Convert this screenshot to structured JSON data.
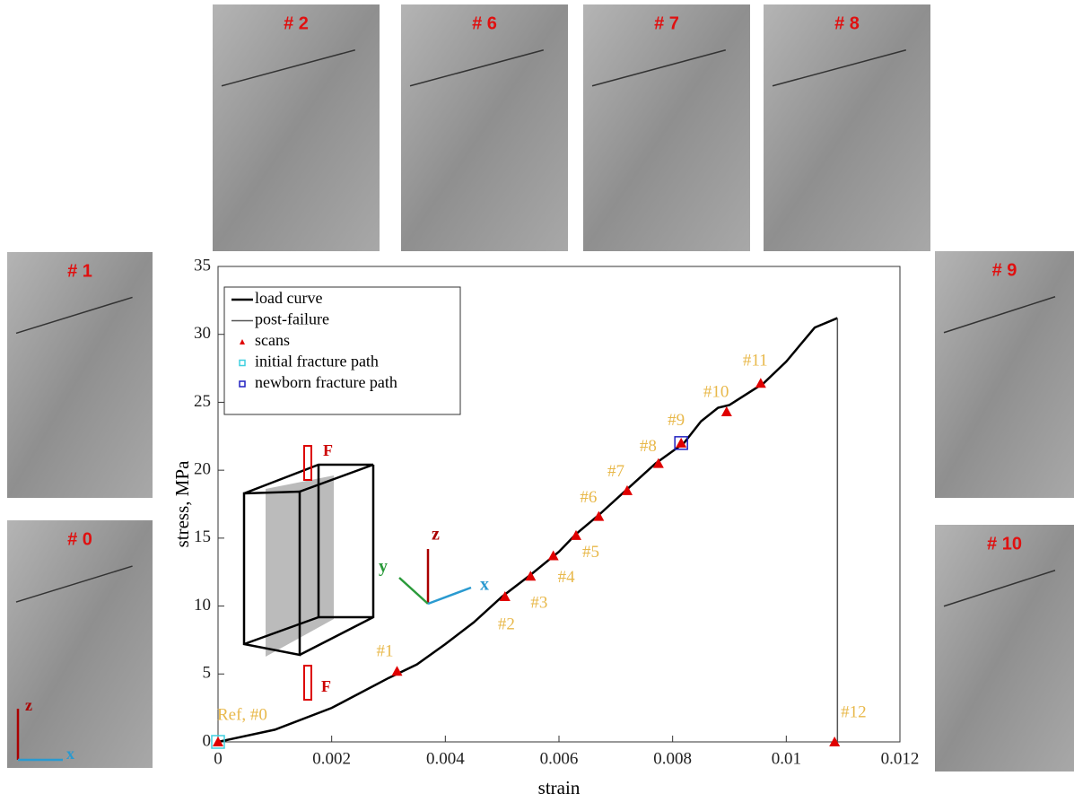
{
  "chart_data": {
    "type": "line",
    "xlabel": "strain",
    "ylabel": "stress, MPa",
    "xlim": [
      0,
      0.012
    ],
    "xticks": [
      0,
      0.002,
      0.004,
      0.006,
      0.008,
      0.01,
      0.012
    ],
    "ylim": [
      0,
      35
    ],
    "yticks": [
      0,
      5,
      10,
      15,
      20,
      25,
      30,
      35
    ],
    "legend": "upper left",
    "series": [
      {
        "name": "load curve",
        "color": "#000000",
        "style": "line",
        "x": [
          0,
          0.001,
          0.002,
          0.003,
          0.0035,
          0.004,
          0.0045,
          0.005,
          0.0055,
          0.006,
          0.0063,
          0.0067,
          0.0072,
          0.0077,
          0.0082,
          0.0085,
          0.0088,
          0.009,
          0.0096,
          0.01,
          0.0105,
          0.0109
        ],
        "values": [
          0,
          0.9,
          2.5,
          4.7,
          5.7,
          7.2,
          8.8,
          10.7,
          12.3,
          14,
          15.3,
          16.7,
          18.6,
          20.5,
          22,
          23.6,
          24.6,
          24.8,
          26.4,
          28,
          30.5,
          31.2
        ]
      },
      {
        "name": "post-failure",
        "color": "#555555",
        "style": "line",
        "x": [
          0.0109,
          0.0109
        ],
        "values": [
          31.2,
          0
        ]
      },
      {
        "name": "scans",
        "color": "#e00000",
        "style": "triangle",
        "x": [
          0,
          0.00315,
          0.00505,
          0.0055,
          0.0059,
          0.0063,
          0.0067,
          0.0072,
          0.00775,
          0.00815,
          0.00895,
          0.00955,
          0.01085
        ],
        "values": [
          0,
          5.2,
          10.7,
          12.2,
          13.7,
          15.2,
          16.6,
          18.5,
          20.5,
          22,
          24.3,
          26.4,
          0
        ],
        "labels": [
          "Ref, #0",
          "#1",
          "#2",
          "#3",
          "#4",
          "#5",
          "#6",
          "#7",
          "#8",
          "#9",
          "#10",
          "#11",
          "#12"
        ]
      },
      {
        "name": "initial fracture path",
        "color": "#40d0e0",
        "style": "square",
        "x": [
          0
        ],
        "values": [
          0
        ]
      },
      {
        "name": "newborn fracture path",
        "color": "#2020c0",
        "style": "square",
        "x": [
          0.00815
        ],
        "values": [
          22
        ]
      }
    ]
  },
  "images": [
    "# 2",
    "# 6",
    "# 7",
    "# 8",
    "# 1",
    "# 0",
    "# 9",
    "# 10"
  ],
  "figure_labels": {
    "force_top": "F",
    "force_bottom": "F",
    "axis_z": "z",
    "axis_y": "y",
    "axis_x": "x",
    "corner_z": "z",
    "corner_x": "x"
  }
}
